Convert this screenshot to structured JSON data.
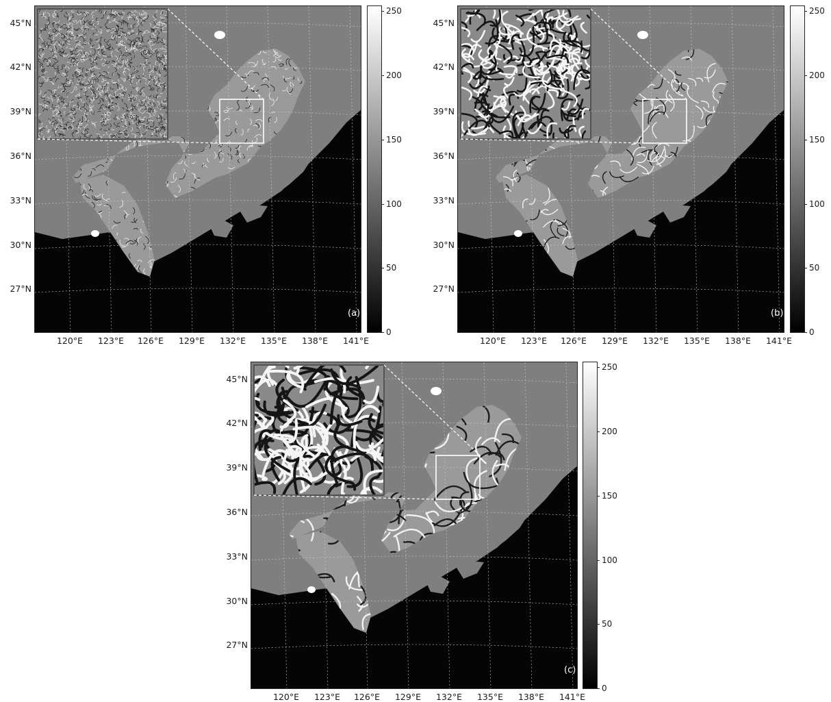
{
  "panels": [
    {
      "id": "a",
      "tag": "(a)",
      "texture": "fine"
    },
    {
      "id": "b",
      "tag": "(b)",
      "texture": "medium"
    },
    {
      "id": "c",
      "tag": "(c)",
      "texture": "coarse"
    }
  ],
  "lat_labels": [
    "45°N",
    "42°N",
    "39°N",
    "36°N",
    "33°N",
    "30°N",
    "27°N"
  ],
  "lon_labels": [
    "120°E",
    "123°E",
    "126°E",
    "129°E",
    "132°E",
    "135°E",
    "138°E",
    "141°E"
  ],
  "colorbar": {
    "min": 0,
    "max": 255,
    "ticks": [
      "250",
      "200",
      "150",
      "100",
      "50",
      "0"
    ],
    "tick_values": [
      250,
      200,
      150,
      100,
      50,
      0
    ]
  },
  "colors": {
    "land": "#7f7f7f",
    "ocean_dark": "#050505",
    "box": "#ffffff"
  }
}
